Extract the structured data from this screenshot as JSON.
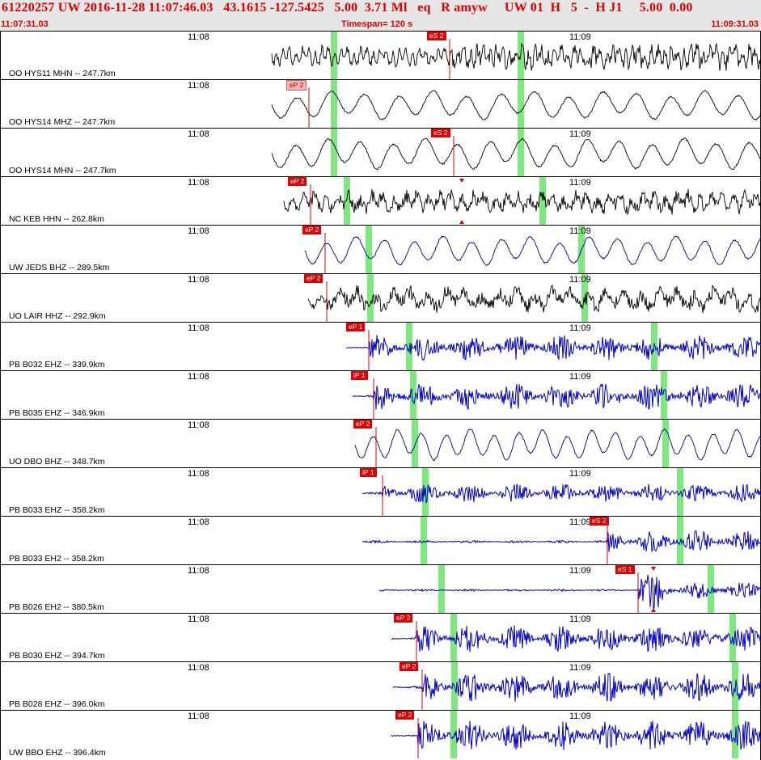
{
  "header": {
    "title": "61220257 UW 2016-11-28 11:07:46.03   43.1615 -127.5425   5.00  3.71 Ml   eq   R amyw     UW 01  H   5  -  H J1     5.00  0.00",
    "start_time": "11:07:31.03",
    "timespan": "Timespan= 120 s",
    "end_time": "11:09:31.03"
  },
  "colors": {
    "title_red": "#e00000",
    "pick_red": "#e00000",
    "trace_blue": "#0000cc",
    "trace_black": "#000000",
    "marker_green": "#7ee87e"
  },
  "time_ticks": [
    "11:08",
    "11:09"
  ],
  "traces": [
    {
      "label": "OO HYS11 MHN -- 247.7km",
      "pick": "eS 2",
      "color": "#000000",
      "type": "nervy",
      "amp": 15,
      "start": 335,
      "arrival": 555,
      "green": [
        412,
        643
      ],
      "show2": true,
      "period": 8
    },
    {
      "label": "OO HYS14 MHZ -- 247.7km",
      "pick": "eP 2",
      "pale": true,
      "color": "#000000",
      "type": "smooth",
      "amp": 17,
      "start": 335,
      "arrival": 381,
      "green": [
        412,
        643
      ],
      "show2": false,
      "period": 42
    },
    {
      "label": "OO HYS14 MHN -- 247.7km",
      "pick": "eS 2",
      "color": "#000000",
      "type": "smooth",
      "amp": 18,
      "start": 335,
      "arrival": 560,
      "green": [
        412,
        643
      ],
      "show2": true,
      "period": 40
    },
    {
      "label": "NC KEB HHN -- 262.8km",
      "pick": "eP 2",
      "color": "#000000",
      "type": "nervy",
      "amp": 13,
      "start": 350,
      "arrival": 383,
      "green": [
        428,
        670
      ],
      "show2": true,
      "period": 14,
      "triangle": 570
    },
    {
      "label": "UW JEDS BHZ -- 289.5km",
      "pick": "eP 2",
      "color": "#000080",
      "type": "smooth",
      "amp": 17,
      "start": 376,
      "arrival": 401,
      "green": [
        455,
        718
      ],
      "show2": true,
      "period": 36
    },
    {
      "label": "UO LAIR HHZ -- 292.9km",
      "pick": "eP 2",
      "color": "#000000",
      "type": "nervy",
      "amp": 14,
      "start": 380,
      "arrival": 403,
      "green": [
        457,
        722
      ],
      "show2": true,
      "period": 22
    },
    {
      "label": "PB B032 EHZ -- 339.9km",
      "pick": "eP 1",
      "color": "#0000cc",
      "type": "noise",
      "amp": 16,
      "start": 427,
      "arrival": 455,
      "green": [
        505,
        808
      ],
      "show2": true,
      "period": 4
    },
    {
      "label": "PB B035 EHZ -- 346.9km",
      "pick": "iP 1",
      "color": "#0000cc",
      "type": "noise",
      "amp": 17,
      "start": 435,
      "arrival": 461,
      "green": [
        510,
        820
      ],
      "show2": true,
      "period": 4
    },
    {
      "label": "UO DBO BHZ -- 348.7km",
      "pick": "eP 2",
      "color": "#000080",
      "type": "smooth",
      "amp": 18,
      "start": 438,
      "arrival": 464,
      "green": [
        512,
        822
      ],
      "show2": false,
      "period": 30
    },
    {
      "label": "PB B033 EHZ -- 358.2km",
      "pick": "iP 1",
      "color": "#0000cc",
      "type": "noise",
      "amp": 12,
      "start": 447,
      "arrival": 472,
      "green": [
        525,
        840
      ],
      "show2": true,
      "period": 4
    },
    {
      "label": "PB B033 EH2 -- 358.2km",
      "pick": "eS 2",
      "color": "#0000cc",
      "type": "noise",
      "amp": 14,
      "start": 447,
      "arrival": 750,
      "green": [
        523,
        840
      ],
      "show2": true,
      "period": 4,
      "pickbox": 728
    },
    {
      "label": "PB B026 EH2 -- 380.5km",
      "pick": "eS 1",
      "color": "#0000cc",
      "type": "noise",
      "amp": 11,
      "start": 468,
      "arrival": 788,
      "green": [
        545,
        878
      ],
      "show2": true,
      "period": 4,
      "pickbox": 760,
      "burst": 805,
      "triangle": 807
    },
    {
      "label": "PB B030 EHZ -- 394.7km",
      "pick": "eP 2",
      "color": "#0000cc",
      "type": "noise",
      "amp": 17,
      "start": 483,
      "arrival": 514,
      "green": [
        560,
        905
      ],
      "show2": true,
      "period": 4
    },
    {
      "label": "PB B028 EHZ -- 396.0km",
      "pick": "eP 2",
      "color": "#0000cc",
      "type": "noise",
      "amp": 18,
      "start": 485,
      "arrival": 521,
      "green": [
        561,
        908
      ],
      "show2": true,
      "period": 4
    },
    {
      "label": "UW BBO EHZ -- 396.4km",
      "pick": "eP 2",
      "color": "#0000cc",
      "type": "noise",
      "amp": 19,
      "start": 483,
      "arrival": 516,
      "green": [
        560,
        908
      ],
      "show2": true,
      "period": 4
    }
  ]
}
